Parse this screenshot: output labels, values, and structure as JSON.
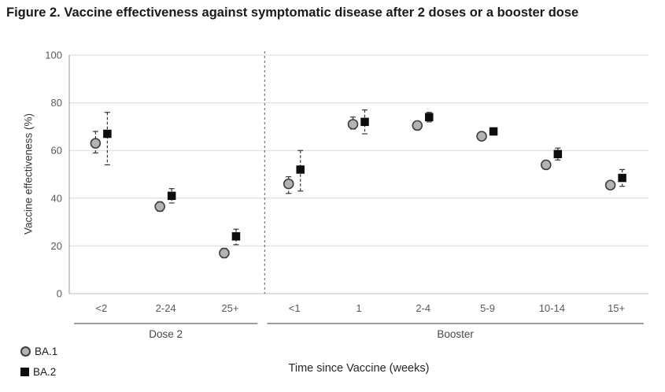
{
  "figure": {
    "title": "Figure 2. Vaccine effectiveness against symptomatic disease after 2 doses or a booster dose"
  },
  "chart_data": {
    "type": "scatter",
    "title": "Figure 2. Vaccine effectiveness against symptomatic disease after 2 doses or a booster dose",
    "xlabel": "Time since Vaccine (weeks)",
    "ylabel": "Vaccine effectiveness (%)",
    "ylim": [
      0,
      100
    ],
    "yticks": [
      0,
      20,
      40,
      60,
      80,
      100
    ],
    "grid": true,
    "legend_position": "bottom-left",
    "categories": [
      "<2",
      "2-24",
      "25+",
      "<1",
      "1",
      "2-4",
      "5-9",
      "10-14",
      "15+"
    ],
    "category_groups": [
      {
        "label": "Dose 2",
        "start": 0,
        "end": 2
      },
      {
        "label": "Booster",
        "start": 3,
        "end": 8
      }
    ],
    "separator_after_category": "25+",
    "series": [
      {
        "name": "BA.1",
        "marker": "circle",
        "fill": "#b3b3b3",
        "stroke": "#3d3d3d",
        "values": [
          63,
          36.5,
          17,
          46,
          71,
          70.5,
          66,
          54,
          45.5
        ],
        "ci_low": [
          59,
          34.5,
          15,
          42,
          69,
          69,
          65,
          52.5,
          44
        ],
        "ci_high": [
          68,
          38.5,
          19,
          49,
          74,
          72,
          67,
          55.5,
          47
        ]
      },
      {
        "name": "BA.2",
        "marker": "square",
        "fill": "#0d0d0d",
        "stroke": "#0d0d0d",
        "values": [
          67,
          41,
          24,
          52,
          72,
          74,
          68,
          58.5,
          48.5
        ],
        "ci_low": [
          54,
          38,
          20.5,
          43,
          67,
          72,
          66.5,
          56,
          45
        ],
        "ci_high": [
          76,
          44,
          27,
          60,
          77,
          76,
          69.5,
          61,
          52
        ]
      }
    ]
  },
  "colors": {
    "gridline": "#d9d9d9",
    "axis_line": "#a6a6a6",
    "x_axis_line": "#bfbfbf",
    "tick_label": "#595959",
    "error_bar": "#333333",
    "separator": "#595959",
    "group_line": "#7f7f7f",
    "title_text": "#1a1a1a",
    "ba1_fill": "#b3b3b3",
    "ba1_stroke": "#3d3d3d",
    "ba2_fill": "#0d0d0d"
  }
}
